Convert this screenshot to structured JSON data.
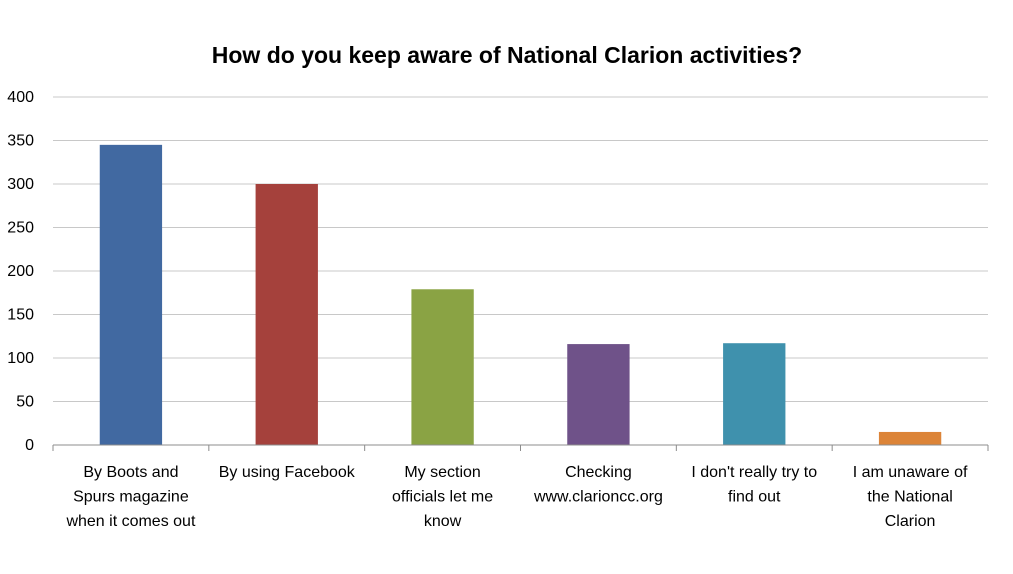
{
  "chart_data": {
    "type": "bar",
    "title": "How do you keep aware of National Clarion activities?",
    "xlabel": "",
    "ylabel": "",
    "ylim": [
      0,
      400
    ],
    "yticks": [
      0,
      50,
      100,
      150,
      200,
      250,
      300,
      350,
      400
    ],
    "grid": true,
    "legend": "none",
    "categories": [
      [
        "By Boots and",
        "Spurs magazine",
        "when it comes out"
      ],
      [
        "By using Facebook"
      ],
      [
        "My section",
        "officials let me",
        "know"
      ],
      [
        "Checking",
        "www.clarioncc.org"
      ],
      [
        "I don't really try to",
        "find out"
      ],
      [
        "I am unaware of",
        "the National",
        "Clarion"
      ]
    ],
    "values": [
      345,
      300,
      179,
      116,
      117,
      15
    ],
    "colors": [
      "#4169a1",
      "#a5413c",
      "#8aa344",
      "#6f5289",
      "#3f91ad",
      "#dc8438"
    ]
  }
}
